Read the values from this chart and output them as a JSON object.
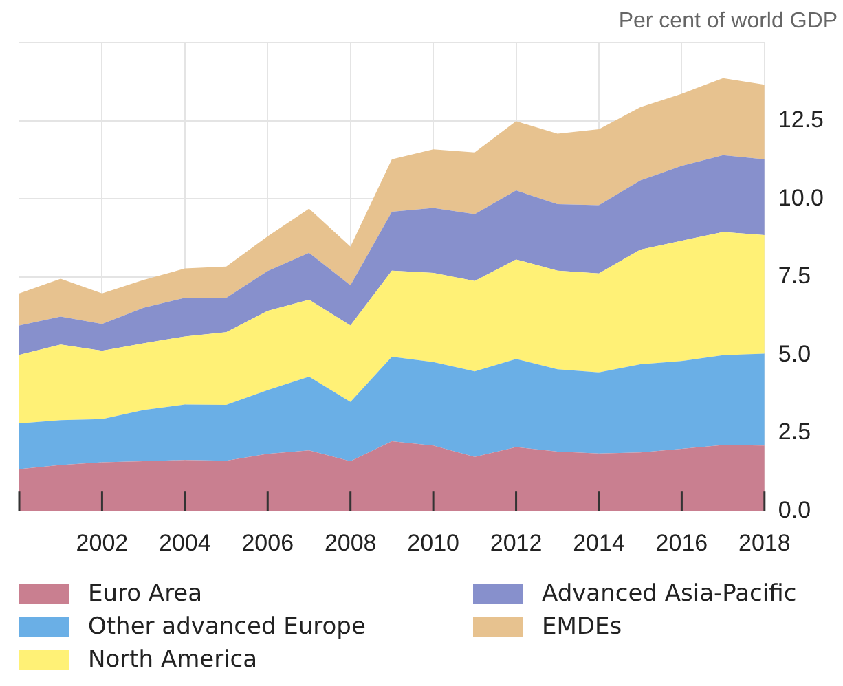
{
  "chart_data": {
    "type": "area",
    "stacked": true,
    "ylabel": "Per cent of world GDP",
    "categories": [
      null,
      null,
      "2002",
      null,
      "2004",
      null,
      "2006",
      null,
      "2008",
      null,
      "2010",
      null,
      "2012",
      null,
      "2014",
      null,
      "2016",
      null,
      "2018"
    ],
    "series": [
      {
        "name": "Euro Area",
        "color": "#c97f90",
        "values": [
          1.34,
          1.47,
          1.56,
          1.59,
          1.63,
          1.61,
          1.83,
          1.94,
          1.59,
          2.23,
          2.09,
          1.73,
          2.04,
          1.9,
          1.84,
          1.87,
          1.99,
          2.11,
          2.09
        ]
      },
      {
        "name": "Other advanced Europe",
        "color": "#6aafe6",
        "values": [
          1.46,
          1.44,
          1.38,
          1.64,
          1.78,
          1.79,
          2.04,
          2.36,
          1.9,
          2.71,
          2.68,
          2.74,
          2.83,
          2.64,
          2.6,
          2.83,
          2.81,
          2.88,
          2.95
        ]
      },
      {
        "name": "North America",
        "color": "#fff176",
        "values": [
          2.2,
          2.42,
          2.19,
          2.14,
          2.18,
          2.33,
          2.54,
          2.47,
          2.45,
          2.76,
          2.86,
          2.9,
          3.19,
          3.16,
          3.17,
          3.67,
          3.86,
          3.95,
          3.8
        ]
      },
      {
        "name": "Advanced Asia-Pacific",
        "color": "#8790cc",
        "values": [
          0.94,
          0.9,
          0.86,
          1.14,
          1.24,
          1.1,
          1.28,
          1.5,
          1.29,
          1.89,
          2.08,
          2.14,
          2.21,
          2.13,
          2.19,
          2.22,
          2.4,
          2.46,
          2.43
        ]
      },
      {
        "name": "EMDEs",
        "color": "#e7c28f",
        "values": [
          1.03,
          1.21,
          0.98,
          0.89,
          0.94,
          1.0,
          1.11,
          1.42,
          1.24,
          1.68,
          1.88,
          1.98,
          2.22,
          2.26,
          2.43,
          2.35,
          2.31,
          2.47,
          2.39
        ]
      }
    ],
    "ylim": [
      0,
      15
    ],
    "yticks": [
      {
        "value": 0,
        "label": "0.0"
      },
      {
        "value": 2.5,
        "label": "2.5"
      },
      {
        "value": 5,
        "label": "5.0"
      },
      {
        "value": 7.5,
        "label": "7.5"
      },
      {
        "value": 10,
        "label": "10.0"
      },
      {
        "value": 12.5,
        "label": "12.5"
      },
      {
        "value": 15,
        "label": null
      }
    ],
    "grid": true,
    "legend": "bottom"
  }
}
